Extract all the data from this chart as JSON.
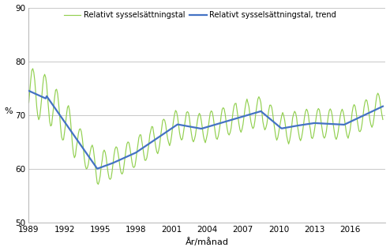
{
  "ylabel": "%",
  "xlabel": "År/månad",
  "legend1": "Relativt sysselsättningstal",
  "legend2": "Relativt sysselsättningstal, trend",
  "ylim": [
    50,
    90
  ],
  "yticks": [
    50,
    60,
    70,
    80,
    90
  ],
  "xticks": [
    1989,
    1992,
    1995,
    1998,
    2001,
    2004,
    2007,
    2010,
    2013,
    2016
  ],
  "line_color": "#4472c4",
  "raw_color": "#92d050",
  "background_color": "#ffffff",
  "grid_color": "#bfbfbf",
  "start_year": 1989,
  "start_month": 1,
  "end_year": 2018,
  "end_month": 10
}
